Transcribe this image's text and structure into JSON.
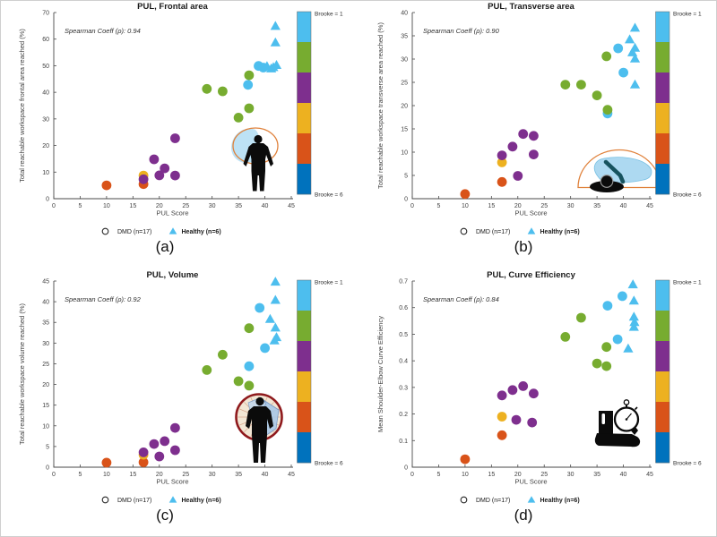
{
  "figure": {
    "background": "#ffffff",
    "legend": {
      "dmd_label": "DMD (n=17)",
      "healthy_label": "Healthy (n=6)",
      "dmd_marker": "open-circle",
      "healthy_marker": "filled-triangle"
    },
    "colorbar": {
      "top_label": "Brooke = 1",
      "bottom_label": "Brooke = 6",
      "colors_top_to_bottom": [
        "#4DBEEE",
        "#77AC30",
        "#7E2F8E",
        "#EDB120",
        "#D95319",
        "#0072BD"
      ]
    },
    "brooke_colors": {
      "1": "#4DBEEE",
      "2": "#77AC30",
      "3": "#7E2F8E",
      "4": "#EDB120",
      "5": "#D95319",
      "6": "#0072BD"
    },
    "healthy_color": "#4DBEEE",
    "axis_color": "#4a4a4a"
  },
  "chart_data": [
    {
      "panel_label": "(a)",
      "type": "scatter",
      "title": "PUL, Frontal area",
      "xlabel": "PUL Score",
      "ylabel": "Total reachable workspace frontal area reached (%)",
      "annotation": "Spearman Coeff (ρ): 0.94",
      "xlim": [
        0,
        45
      ],
      "ylim": [
        0,
        70
      ],
      "xticks": [
        0,
        5,
        10,
        15,
        20,
        25,
        30,
        35,
        40,
        45
      ],
      "yticks": [
        0,
        10,
        20,
        30,
        40,
        50,
        60,
        70
      ],
      "grid": false,
      "legend_position": "below",
      "inset": "frontal-area-silhouette",
      "series": [
        {
          "name": "DMD (n=17)",
          "marker": "circle",
          "color_by": "brooke",
          "points_x_y_brooke": [
            [
              10,
              5,
              5
            ],
            [
              17,
              5.5,
              5
            ],
            [
              17,
              8.7,
              4
            ],
            [
              17,
              7.3,
              3
            ],
            [
              19,
              14.8,
              3
            ],
            [
              20,
              8.8,
              3
            ],
            [
              21,
              11.4,
              3
            ],
            [
              23,
              8.7,
              3
            ],
            [
              23,
              22.7,
              3
            ],
            [
              29,
              41.3,
              2
            ],
            [
              32,
              40.4,
              2
            ],
            [
              35,
              30.5,
              2
            ],
            [
              37,
              34,
              2
            ],
            [
              37,
              46.4,
              2
            ],
            [
              36.8,
              42.8,
              1
            ],
            [
              38.8,
              49.9,
              1
            ],
            [
              39.7,
              49.3,
              1
            ]
          ]
        },
        {
          "name": "Healthy (n=6)",
          "marker": "triangle",
          "brooke": 1,
          "points_x_y": [
            [
              40.4,
              49.8
            ],
            [
              41.2,
              48.9
            ],
            [
              41.6,
              49.4
            ],
            [
              42.2,
              50.2
            ],
            [
              42,
              58.7
            ],
            [
              42,
              64.9
            ]
          ]
        }
      ]
    },
    {
      "panel_label": "(b)",
      "type": "scatter",
      "title": "PUL, Transverse area",
      "xlabel": "PUL Score",
      "ylabel": "Total reachable workspace transverse area reached (%)",
      "annotation": "Spearman Coeff (ρ): 0.90",
      "xlim": [
        0,
        45
      ],
      "ylim": [
        0,
        40
      ],
      "xticks": [
        0,
        5,
        10,
        15,
        20,
        25,
        30,
        35,
        40,
        45
      ],
      "yticks": [
        0,
        5,
        10,
        15,
        20,
        25,
        30,
        35,
        40
      ],
      "grid": false,
      "legend_position": "below",
      "inset": "transverse-area-silhouette",
      "series": [
        {
          "name": "DMD (n=17)",
          "marker": "circle",
          "color_by": "brooke",
          "points_x_y_brooke": [
            [
              10,
              1,
              5
            ],
            [
              17,
              3.6,
              5
            ],
            [
              17,
              7.8,
              4
            ],
            [
              17,
              9.3,
              3
            ],
            [
              19,
              11.2,
              3
            ],
            [
              21,
              13.9,
              3
            ],
            [
              20,
              4.9,
              3
            ],
            [
              23,
              13.5,
              3
            ],
            [
              23,
              9.5,
              3
            ],
            [
              37,
              18.3,
              1
            ],
            [
              29,
              24.5,
              2
            ],
            [
              32,
              24.5,
              2
            ],
            [
              35,
              22.2,
              2
            ],
            [
              37,
              19.1,
              2
            ],
            [
              36.8,
              30.6,
              2
            ],
            [
              39,
              32.3,
              1
            ],
            [
              40,
              27.1,
              1
            ]
          ]
        },
        {
          "name": "Healthy (n=6)",
          "marker": "triangle",
          "brooke": 1,
          "points_x_y": [
            [
              42.2,
              36.7
            ],
            [
              41.2,
              34.2
            ],
            [
              42.2,
              32.4
            ],
            [
              41.7,
              31.4
            ],
            [
              42.2,
              30.1
            ],
            [
              42.2,
              24.5
            ]
          ]
        }
      ]
    },
    {
      "panel_label": "(c)",
      "type": "scatter",
      "title": "PUL, Volume",
      "xlabel": "PUL Score",
      "ylabel": "Total reachable workspace volume reached (%)",
      "annotation": "Spearman Coeff (ρ): 0.92",
      "xlim": [
        0,
        45
      ],
      "ylim": [
        0,
        45
      ],
      "xticks": [
        0,
        5,
        10,
        15,
        20,
        25,
        30,
        35,
        40,
        45
      ],
      "yticks": [
        0,
        5,
        10,
        15,
        20,
        25,
        30,
        35,
        40,
        45
      ],
      "grid": false,
      "legend_position": "below",
      "inset": "volume-silhouette",
      "series": [
        {
          "name": "DMD (n=17)",
          "marker": "circle",
          "color_by": "brooke",
          "points_x_y_brooke": [
            [
              10,
              1.1,
              5
            ],
            [
              17,
              1.2,
              5
            ],
            [
              17,
              3,
              4
            ],
            [
              17,
              3.6,
              3
            ],
            [
              19,
              5.6,
              3
            ],
            [
              20,
              2.6,
              3
            ],
            [
              21,
              6.3,
              3
            ],
            [
              23,
              9.5,
              3
            ],
            [
              23,
              4.1,
              3
            ],
            [
              29,
              23.5,
              2
            ],
            [
              32,
              27.2,
              2
            ],
            [
              35,
              20.8,
              2
            ],
            [
              37,
              19.7,
              2
            ],
            [
              37,
              33.6,
              2
            ],
            [
              39,
              38.5,
              1
            ],
            [
              40,
              28.8,
              1
            ],
            [
              37,
              24.4,
              1
            ]
          ]
        },
        {
          "name": "Healthy (n=6)",
          "marker": "triangle",
          "brooke": 1,
          "points_x_y": [
            [
              42,
              44.8
            ],
            [
              42,
              40.4
            ],
            [
              41,
              35.8
            ],
            [
              42,
              33.7
            ],
            [
              42.2,
              31.4
            ],
            [
              41.8,
              30.6
            ]
          ]
        }
      ]
    },
    {
      "panel_label": "(d)",
      "type": "scatter",
      "title": "PUL, Curve Efficiency",
      "xlabel": "PUL Score",
      "ylabel": "Mean Shoulder-Elbow Curve Efficiency",
      "annotation": "Spearman Coeff (ρ): 0.84",
      "xlim": [
        0,
        45
      ],
      "ylim": [
        0,
        0.7
      ],
      "xticks": [
        0,
        5,
        10,
        15,
        20,
        25,
        30,
        35,
        40,
        45
      ],
      "yticks": [
        0,
        0.1,
        0.2,
        0.3,
        0.4,
        0.5,
        0.6,
        0.7
      ],
      "grid": false,
      "legend_position": "below",
      "inset": "arm-stopwatch",
      "series": [
        {
          "name": "DMD (n=17)",
          "marker": "circle",
          "color_by": "brooke",
          "points_x_y_brooke": [
            [
              10,
              0.03,
              5
            ],
            [
              17,
              0.12,
              5
            ],
            [
              17,
              0.19,
              4
            ],
            [
              17,
              0.27,
              3
            ],
            [
              19,
              0.29,
              3
            ],
            [
              21,
              0.305,
              3
            ],
            [
              19.7,
              0.178,
              3
            ],
            [
              23,
              0.277,
              3
            ],
            [
              22.7,
              0.168,
              3
            ],
            [
              29,
              0.49,
              2
            ],
            [
              32,
              0.562,
              2
            ],
            [
              35,
              0.39,
              2
            ],
            [
              36.8,
              0.38,
              2
            ],
            [
              36.8,
              0.452,
              2
            ],
            [
              37,
              0.607,
              1
            ],
            [
              39.8,
              0.643,
              1
            ],
            [
              38.9,
              0.481,
              1
            ]
          ]
        },
        {
          "name": "Healthy (n=6)",
          "marker": "triangle",
          "brooke": 1,
          "points_x_y": [
            [
              41.8,
              0.687
            ],
            [
              42,
              0.626
            ],
            [
              42,
              0.565
            ],
            [
              42.1,
              0.545
            ],
            [
              42,
              0.527
            ],
            [
              40.9,
              0.446
            ]
          ]
        }
      ]
    }
  ]
}
